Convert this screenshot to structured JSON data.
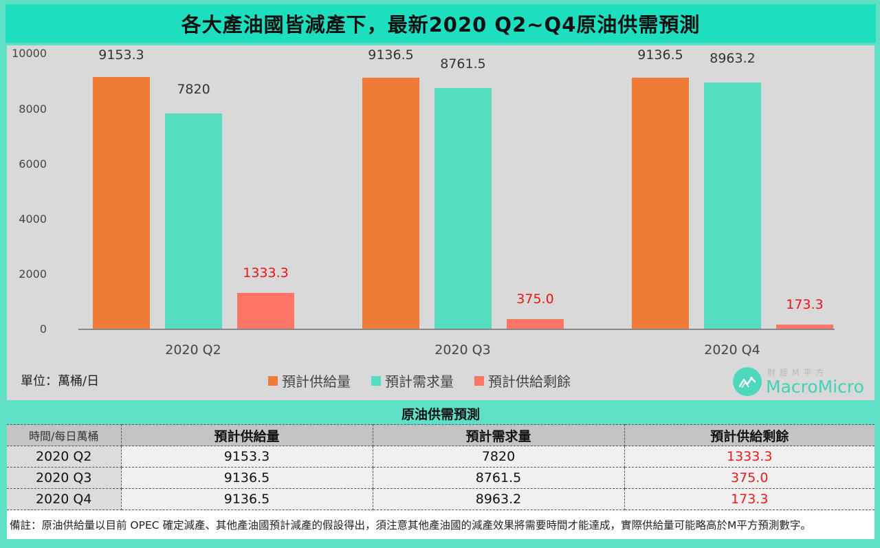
{
  "title": "各大產油國皆減產下，最新2020 Q2~Q4原油供需預測",
  "colors": {
    "supply": "#ef7b37",
    "demand": "#56dcc0",
    "surplus": "#ff7565",
    "surplus_text": "#ee1111",
    "title_bar": "#1ddfc0",
    "frame": "#5ee0c6",
    "chart_bg": "#d9d9d9"
  },
  "chart": {
    "unit_label": "單位：萬桶/日",
    "y_ticks": [
      "10000",
      "8000",
      "6000",
      "4000",
      "2000",
      "0"
    ],
    "categories": [
      "2020 Q2",
      "2020 Q3",
      "2020 Q4"
    ],
    "legend": [
      "預計供給量",
      "預計需求量",
      "預計供給剩餘"
    ],
    "labels": {
      "supply": [
        "9153.3",
        "9136.5",
        "9136.5"
      ],
      "demand": [
        "7820",
        "8761.5",
        "8963.2"
      ],
      "surplus": [
        "1333.3",
        "375.0",
        "173.3"
      ]
    }
  },
  "chart_data": {
    "type": "bar",
    "title": "各大產油國皆減產下，最新2020 Q2~Q4原油供需預測",
    "categories": [
      "2020 Q2",
      "2020 Q3",
      "2020 Q4"
    ],
    "series": [
      {
        "name": "預計供給量",
        "values": [
          9153.3,
          9136.5,
          9136.5
        ],
        "color": "#ef7b37"
      },
      {
        "name": "預計需求量",
        "values": [
          7820,
          8761.5,
          8963.2
        ],
        "color": "#56dcc0"
      },
      {
        "name": "預計供給剩餘",
        "values": [
          1333.3,
          375.0,
          173.3
        ],
        "color": "#ff7565"
      }
    ],
    "xlabel": "",
    "ylabel": "單位：萬桶/日",
    "ylim": [
      0,
      10000
    ],
    "y_ticks": [
      0,
      2000,
      4000,
      6000,
      8000,
      10000
    ],
    "grid": false,
    "legend_position": "bottom",
    "data_labels": true
  },
  "logo": {
    "cn": "財經M平方",
    "en": "MacroMicro"
  },
  "table": {
    "title": "原油供需預測",
    "headers": [
      "時間/每日萬桶",
      "預計供給量",
      "預計需求量",
      "預計供給剩餘"
    ],
    "rows": [
      [
        "2020 Q2",
        "9153.3",
        "7820",
        "1333.3"
      ],
      [
        "2020 Q3",
        "9136.5",
        "8761.5",
        "375.0"
      ],
      [
        "2020 Q4",
        "9136.5",
        "8963.2",
        "173.3"
      ]
    ]
  },
  "footnote": "備註：原油供給量以目前 OPEC 確定減產、其他產油國預計減產的假設得出，須注意其他產油國的減產效果將需要時間才能達成，實際供給量可能略高於M平方預測數字。"
}
